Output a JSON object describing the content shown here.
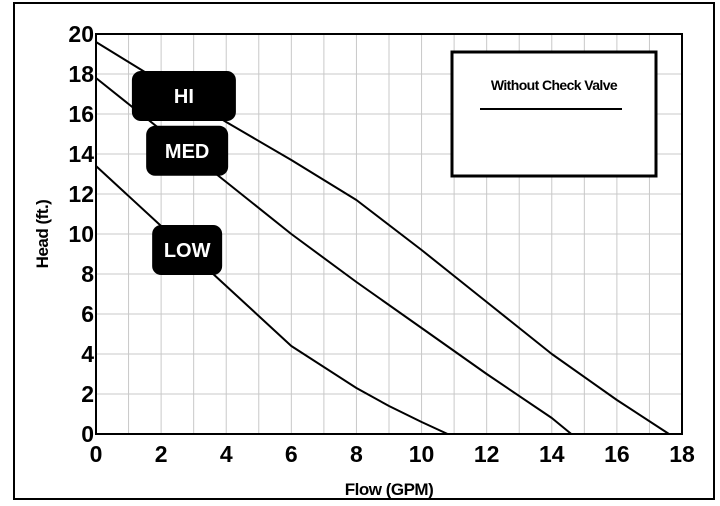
{
  "chart_data": {
    "type": "line",
    "title": "",
    "xlabel": "Flow (GPM)",
    "ylabel": "Head (ft.)",
    "xlim": [
      0,
      18
    ],
    "ylim": [
      0,
      20
    ],
    "x_ticks": [
      "0",
      "2",
      "4",
      "6",
      "8",
      "10",
      "12",
      "14",
      "16",
      "18"
    ],
    "y_ticks": [
      "0",
      "2",
      "4",
      "6",
      "8",
      "10",
      "12",
      "14",
      "16",
      "18",
      "20"
    ],
    "grid": true,
    "legend": {
      "title": "Without Check Valve",
      "position": "top-right"
    },
    "series": [
      {
        "name": "HI",
        "x": [
          0,
          2,
          4,
          6,
          8,
          10,
          12,
          14,
          16,
          17.6
        ],
        "y": [
          19.6,
          17.6,
          15.6,
          13.7,
          11.7,
          9.2,
          6.6,
          4.0,
          1.7,
          0
        ]
      },
      {
        "name": "MED",
        "x": [
          0,
          2,
          4,
          6,
          8,
          10,
          12,
          14,
          14.6
        ],
        "y": [
          17.8,
          15.2,
          12.6,
          10.0,
          7.6,
          5.3,
          3.0,
          0.8,
          0
        ]
      },
      {
        "name": "LOW",
        "x": [
          0,
          2,
          4,
          6,
          8,
          9,
          10,
          10.8
        ],
        "y": [
          13.4,
          10.4,
          7.4,
          4.4,
          2.3,
          1.4,
          0.6,
          0
        ]
      }
    ]
  }
}
